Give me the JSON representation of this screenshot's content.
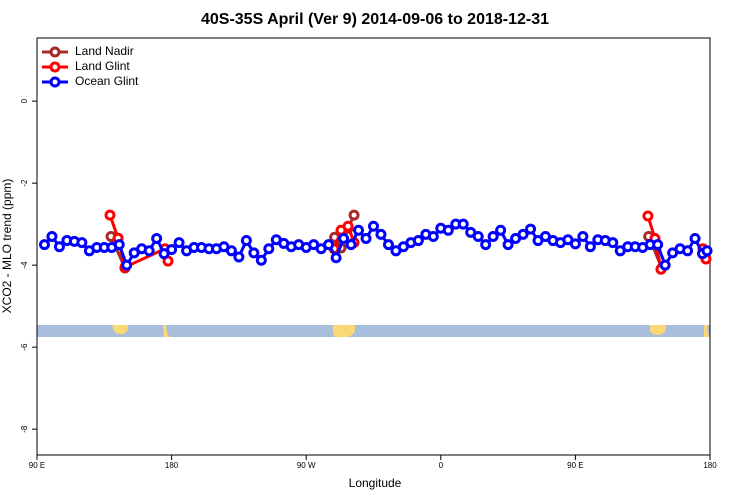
{
  "chart_data": {
    "type": "line",
    "title": "40S-35S April (Ver 9)   2014-09-06 to 2018-12-31",
    "xlabel": "Longitude",
    "ylabel": "XCO2 - MLO trend (ppm)",
    "xlim": [
      90,
      540
    ],
    "xticks": [
      {
        "value": 90,
        "label": "90 E"
      },
      180,
      {
        "value": 270,
        "label": "90 W"
      },
      {
        "value": 360,
        "label": "0"
      },
      {
        "value": 450,
        "label": "90 E"
      },
      {
        "value": 540,
        "label": "180"
      }
    ],
    "ylim": [
      -8.63,
      1.54
    ],
    "yticks": [
      -8,
      -6,
      -4,
      -2,
      0
    ],
    "legend": "top-left",
    "series": [
      {
        "name": "Land Nadir",
        "color": "#a52a2a",
        "x": [
          139.5,
          148.8,
          null,
          289,
          293.3,
          298,
          302,
          null,
          499,
          507.8
        ],
        "values": [
          -3.3,
          -4.07,
          null,
          -3.32,
          -3.58,
          -3.1,
          -2.78,
          null,
          -3.3,
          -4.07
        ]
      },
      {
        "name": "Land Glint",
        "color": "#ff0000",
        "x": [
          138.8,
          144.2,
          148.8,
          175.6,
          177.6,
          null,
          288.6,
          293.3,
          298,
          302,
          null,
          498.5,
          503.2,
          507.2,
          null,
          535.3,
          537.3
        ],
        "values": [
          -2.78,
          -3.34,
          -4.05,
          -3.6,
          -3.9,
          null,
          -3.6,
          -3.15,
          -3.05,
          -3.45,
          null,
          -2.8,
          -3.35,
          -4.1,
          null,
          -3.6,
          -3.85
        ]
      },
      {
        "name": "Ocean Glint",
        "color": "#0000ff",
        "x": [
          95,
          100,
          105,
          110,
          115,
          120,
          125,
          130,
          135,
          140,
          145,
          150,
          155,
          160,
          165,
          170,
          175,
          180,
          185,
          190,
          195,
          200,
          205,
          210,
          215,
          220,
          225,
          230,
          235,
          240,
          245,
          250,
          255,
          260,
          265,
          270,
          275,
          280,
          285,
          290,
          295,
          300,
          305,
          310,
          315,
          320,
          325,
          330,
          335,
          340,
          345,
          350,
          355,
          360,
          365,
          370,
          375,
          380,
          385,
          390,
          395,
          400,
          405,
          410,
          415,
          420,
          425,
          430,
          435,
          440,
          445,
          450,
          455,
          460,
          465,
          470,
          475,
          480,
          485,
          490,
          495,
          500,
          505,
          510,
          515,
          520,
          525,
          530,
          535,
          538
        ],
        "values": [
          -3.5,
          -3.3,
          -3.55,
          -3.4,
          -3.42,
          -3.45,
          -3.65,
          -3.57,
          -3.57,
          -3.57,
          -3.5,
          -4.0,
          -3.7,
          -3.6,
          -3.65,
          -3.35,
          -3.72,
          -3.62,
          -3.45,
          -3.65,
          -3.57,
          -3.57,
          -3.6,
          -3.6,
          -3.55,
          -3.65,
          -3.8,
          -3.4,
          -3.7,
          -3.88,
          -3.6,
          -3.38,
          -3.47,
          -3.55,
          -3.5,
          -3.57,
          -3.5,
          -3.6,
          -3.5,
          -3.82,
          -3.35,
          -3.5,
          -3.15,
          -3.35,
          -3.05,
          -3.25,
          -3.5,
          -3.65,
          -3.55,
          -3.45,
          -3.4,
          -3.25,
          -3.3,
          -3.1,
          -3.15,
          -3.0,
          -3.0,
          -3.2,
          -3.3,
          -3.5,
          -3.3,
          -3.15,
          -3.5,
          -3.35,
          -3.25,
          -3.12,
          -3.4,
          -3.3,
          -3.4,
          -3.45,
          -3.38,
          -3.48,
          -3.3,
          -3.55,
          -3.38,
          -3.4,
          -3.45,
          -3.65,
          -3.55,
          -3.55,
          -3.57,
          -3.5,
          -3.5,
          -4.0,
          -3.7,
          -3.6,
          -3.65,
          -3.35,
          -3.72,
          -3.65
        ]
      }
    ]
  }
}
